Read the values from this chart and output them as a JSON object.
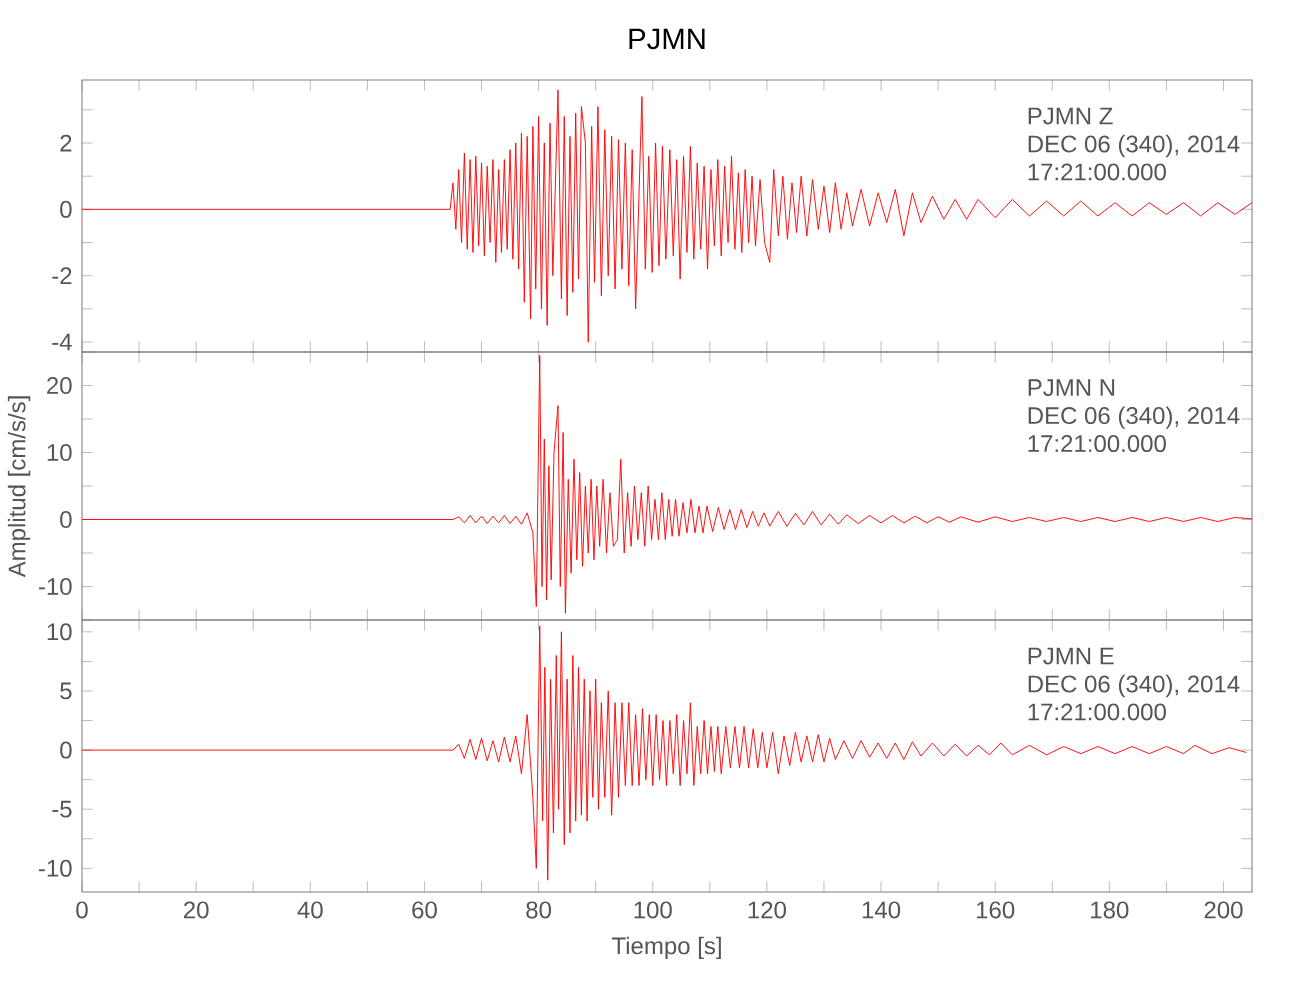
{
  "chart_data": [
    {
      "type": "line",
      "title": "PJMN",
      "color": "#ff0000",
      "tick_labels": "y",
      "xlim": [
        0,
        205
      ],
      "ylim": [
        -4.3,
        3.9
      ],
      "xticks": [
        0,
        {
          "value": 10,
          "label": null
        },
        20,
        {
          "value": 30,
          "label": null
        },
        40,
        {
          "value": 50,
          "label": null
        },
        60,
        {
          "value": 70,
          "label": null
        },
        80,
        {
          "value": 90,
          "label": null
        },
        100,
        {
          "value": 110,
          "label": null
        },
        120,
        {
          "value": 130,
          "label": null
        },
        140,
        {
          "value": 150,
          "label": null
        },
        160,
        {
          "value": 170,
          "label": null
        },
        180,
        {
          "value": 190,
          "label": null
        },
        200
      ],
      "yticks": [
        -4,
        {
          "value": -3,
          "label": null
        },
        -2,
        {
          "value": -1,
          "label": null
        },
        0,
        {
          "value": 1,
          "label": null
        },
        2,
        {
          "value": 3,
          "label": null
        }
      ],
      "annotations": [
        "PJMN   Z",
        "DEC 06 (340), 2014",
        "17:21:00.000"
      ],
      "x": [
        0,
        20,
        40,
        60,
        64.5,
        65,
        65.5,
        66,
        66.5,
        67,
        67.5,
        68,
        68.5,
        69,
        69.5,
        70,
        70.5,
        71,
        71.5,
        72,
        72.5,
        73,
        73.5,
        74,
        74.5,
        75,
        75.5,
        76,
        76.5,
        77,
        77.5,
        78,
        78.6,
        79,
        79.5,
        80,
        80.5,
        81,
        81.5,
        82,
        82.5,
        83.4,
        84,
        84.5,
        85,
        85.5,
        86,
        86.5,
        87,
        87.5,
        88.2,
        88.7,
        89.3,
        89.8,
        90.4,
        91,
        91.6,
        92.2,
        92.8,
        93.4,
        94,
        94.6,
        95.2,
        95.8,
        96.4,
        97,
        98.1,
        98.7,
        99.3,
        99.9,
        100.5,
        101.1,
        101.7,
        102.3,
        103,
        103.6,
        104.2,
        104.8,
        105.4,
        106,
        106.6,
        107.2,
        107.8,
        108.4,
        109,
        109.6,
        110.2,
        110.8,
        111.4,
        112,
        112.6,
        113.2,
        113.8,
        114.4,
        115,
        115.6,
        116.2,
        116.8,
        117.4,
        118,
        118.8,
        119.6,
        120.5,
        121.2,
        122,
        122.8,
        123.6,
        124.4,
        125.2,
        126,
        127,
        128,
        129,
        130,
        131,
        132,
        133,
        134,
        135,
        136.5,
        138,
        139.5,
        141,
        142.5,
        144,
        145.5,
        147,
        149,
        151,
        153,
        155,
        157,
        160,
        163,
        166,
        169,
        172,
        175,
        178,
        181,
        184,
        187,
        190,
        193,
        196,
        199,
        202,
        205
      ],
      "values": [
        0,
        0,
        0,
        0,
        0,
        0.8,
        -0.6,
        1.2,
        -1.0,
        1.7,
        -1.2,
        1.5,
        -1.3,
        1.6,
        -1.1,
        1.4,
        -1.4,
        1.3,
        -1.0,
        1.5,
        -1.6,
        1.2,
        -1.3,
        1.5,
        -1.2,
        1.8,
        -1.5,
        2.0,
        -1.8,
        2.3,
        -2.8,
        2.2,
        -3.3,
        2.5,
        -2.4,
        2.8,
        -3.0,
        2.0,
        -3.5,
        2.6,
        -2.0,
        3.6,
        -2.7,
        2.8,
        -3.2,
        2.2,
        -2.5,
        2.9,
        -2.1,
        3.1,
        2.0,
        -4.0,
        2.5,
        -2.2,
        3.1,
        -2.6,
        2.4,
        -2.0,
        2.2,
        -2.4,
        2.1,
        -1.8,
        2.0,
        -2.3,
        1.8,
        -3.0,
        3.4,
        -1.8,
        1.6,
        -1.9,
        2.0,
        -1.7,
        1.9,
        -1.5,
        1.8,
        -1.4,
        1.5,
        -2.1,
        1.6,
        -1.3,
        1.9,
        -1.5,
        1.4,
        -1.2,
        1.3,
        -1.8,
        1.2,
        -1.1,
        1.5,
        -1.4,
        1.3,
        -1.0,
        1.6,
        -1.2,
        1.1,
        -1.3,
        1.2,
        -1.0,
        1.0,
        -1.1,
        0.9,
        -1.0,
        -1.6,
        1.2,
        -0.8,
        1.0,
        -0.9,
        0.8,
        -0.7,
        1.0,
        -0.8,
        0.9,
        -0.6,
        0.7,
        -0.7,
        0.8,
        -0.6,
        0.5,
        -0.5,
        0.6,
        -0.5,
        0.5,
        -0.4,
        0.6,
        -0.8,
        0.5,
        -0.4,
        0.4,
        -0.3,
        0.3,
        -0.3,
        0.3,
        -0.25,
        0.3,
        -0.2,
        0.25,
        -0.2,
        0.25,
        -0.2,
        0.2,
        -0.2,
        0.2,
        -0.15,
        0.2,
        -0.2,
        0.2,
        -0.15,
        0.2
      ]
    },
    {
      "type": "line",
      "ylabel": "Amplitud [cm/s/s]",
      "color": "#ff0000",
      "tick_labels": "y",
      "xlim": [
        0,
        205
      ],
      "ylim": [
        -15,
        25
      ],
      "xticks": [
        0,
        {
          "value": 10,
          "label": null
        },
        20,
        {
          "value": 30,
          "label": null
        },
        40,
        {
          "value": 50,
          "label": null
        },
        60,
        {
          "value": 70,
          "label": null
        },
        80,
        {
          "value": 90,
          "label": null
        },
        100,
        {
          "value": 110,
          "label": null
        },
        120,
        {
          "value": 130,
          "label": null
        },
        140,
        {
          "value": 150,
          "label": null
        },
        160,
        {
          "value": 170,
          "label": null
        },
        180,
        {
          "value": 190,
          "label": null
        },
        200
      ],
      "yticks": [
        {
          "value": -15,
          "label": null
        },
        -10,
        {
          "value": -5,
          "label": null
        },
        0,
        {
          "value": 5,
          "label": null
        },
        10,
        {
          "value": 15,
          "label": null
        },
        20,
        {
          "value": 25,
          "label": null
        }
      ],
      "annotations": [
        "PJMN   N",
        "DEC 06 (340), 2014",
        "17:21:00.000"
      ],
      "x": [
        0,
        30,
        60,
        65,
        66,
        67,
        68,
        69,
        70,
        71,
        72,
        73,
        74,
        75,
        76,
        77,
        78,
        79,
        79.6,
        80.2,
        80.6,
        81,
        81.4,
        81.8,
        82.2,
        82.7,
        83.4,
        83.8,
        84.3,
        84.7,
        85.2,
        85.7,
        86.2,
        86.7,
        87.2,
        87.7,
        88.2,
        88.7,
        89.2,
        89.7,
        90.2,
        90.7,
        91.3,
        91.9,
        92.5,
        93.1,
        93.8,
        94.4,
        95,
        95.6,
        96.2,
        96.8,
        97.4,
        98,
        98.6,
        99.2,
        99.8,
        100.4,
        101,
        101.6,
        102.2,
        102.8,
        103.4,
        104,
        104.6,
        105.3,
        106,
        106.7,
        107.4,
        108.1,
        108.8,
        109.5,
        110.5,
        111.5,
        112.5,
        113.5,
        114.5,
        115.5,
        116.5,
        117.5,
        118.5,
        119.5,
        120.5,
        122,
        123.5,
        125,
        126.5,
        128,
        129.5,
        131,
        132.5,
        134,
        136,
        138,
        140,
        142,
        144,
        146,
        148,
        150,
        152,
        154,
        157,
        160,
        163,
        166,
        169,
        172,
        175,
        178,
        181,
        184,
        187,
        190,
        193,
        196,
        199,
        202,
        205
      ],
      "values": [
        0,
        0,
        0,
        0,
        0.4,
        -0.5,
        0.6,
        -0.5,
        0.5,
        -0.6,
        0.5,
        -0.5,
        0.6,
        -0.6,
        0.5,
        -0.7,
        1.0,
        -2.0,
        -13,
        24.5,
        -10,
        12,
        -12,
        8,
        -9,
        10,
        17,
        -10,
        13,
        -14,
        6,
        -8,
        9,
        -6,
        7,
        -7,
        5,
        -5,
        6,
        -6,
        5,
        -4,
        6,
        -5,
        4,
        -4,
        -3,
        9,
        -5,
        4,
        -4,
        5,
        -3,
        4,
        -4,
        5,
        -3,
        3,
        -3,
        4,
        -3,
        3,
        -2.5,
        3,
        -2.5,
        2.5,
        -2,
        3,
        -2,
        2,
        -2,
        2,
        -1.8,
        1.8,
        -1.5,
        1.5,
        -1.5,
        1.5,
        -1.2,
        1.2,
        -1,
        1,
        -1,
        1.2,
        -1,
        0.9,
        -0.8,
        1.2,
        -0.8,
        0.8,
        -0.7,
        0.7,
        -0.6,
        0.6,
        -0.5,
        0.6,
        -0.5,
        0.5,
        -0.5,
        0.4,
        -0.4,
        0.4,
        -0.4,
        0.4,
        -0.3,
        0.3,
        -0.3,
        0.3,
        -0.3,
        0.3,
        -0.3,
        0.3,
        -0.3,
        0.3,
        -0.3,
        0.3,
        -0.3,
        0.3,
        0.1
      ]
    },
    {
      "type": "line",
      "xlabel": "Tiempo [s]",
      "color": "#ff0000",
      "xlim": [
        0,
        205
      ],
      "ylim": [
        -12,
        11
      ],
      "xticks": [
        0,
        {
          "value": 10,
          "label": null
        },
        20,
        {
          "value": 30,
          "label": null
        },
        40,
        {
          "value": 50,
          "label": null
        },
        60,
        {
          "value": 70,
          "label": null
        },
        80,
        {
          "value": 90,
          "label": null
        },
        100,
        {
          "value": 110,
          "label": null
        },
        120,
        {
          "value": 130,
          "label": null
        },
        140,
        {
          "value": 150,
          "label": null
        },
        160,
        {
          "value": 170,
          "label": null
        },
        180,
        {
          "value": 190,
          "label": null
        },
        200
      ],
      "yticks": [
        -10,
        {
          "value": -7.5,
          "label": null
        },
        -5,
        {
          "value": -2.5,
          "label": null
        },
        0,
        {
          "value": 2.5,
          "label": null
        },
        5,
        {
          "value": 7.5,
          "label": null
        },
        10
      ],
      "annotations": [
        "PJMN   E",
        "DEC 06 (340), 2014",
        "17:21:00.000"
      ],
      "x": [
        0,
        30,
        60,
        65,
        66,
        67,
        68,
        69,
        70,
        71,
        72,
        73,
        74,
        75,
        76,
        77,
        78,
        79,
        79.6,
        80.2,
        80.7,
        81.1,
        81.6,
        82.1,
        82.6,
        83.1,
        83.5,
        84,
        84.5,
        85,
        85.5,
        86,
        86.5,
        87,
        87.5,
        88,
        88.5,
        89,
        89.5,
        90,
        90.5,
        91,
        91.6,
        92.2,
        92.8,
        93.4,
        94,
        94.6,
        95.2,
        95.8,
        96.4,
        97,
        97.6,
        98.2,
        98.8,
        99.4,
        100,
        100.6,
        101.2,
        101.8,
        102.4,
        103,
        103.6,
        104.2,
        104.8,
        105.4,
        106,
        106.6,
        107.2,
        107.8,
        108.4,
        109,
        109.6,
        110.2,
        110.8,
        111.4,
        112,
        112.8,
        113.6,
        114.4,
        115.2,
        116,
        116.8,
        117.6,
        118.4,
        119.2,
        120,
        121,
        122,
        123,
        124,
        125,
        126,
        127,
        128,
        129,
        130,
        131,
        132,
        133.5,
        135,
        136.5,
        138,
        139.5,
        141,
        142.5,
        144,
        145.5,
        147,
        149,
        151,
        153,
        155,
        157,
        159,
        161,
        163,
        166,
        169,
        172,
        175,
        178,
        181,
        184,
        187,
        190,
        193,
        195,
        198,
        201,
        204
      ],
      "values": [
        0,
        0,
        0,
        0,
        0.5,
        -0.7,
        0.9,
        -0.8,
        1.0,
        -0.9,
        0.8,
        -1.0,
        1.1,
        -1.0,
        1.2,
        -2.0,
        3,
        -4,
        -10,
        10.5,
        -6,
        7,
        -11,
        6,
        -7,
        8,
        -5,
        10,
        -8,
        6,
        -7,
        8,
        -6,
        7,
        -5.5,
        6,
        -6,
        5,
        -4,
        6,
        -5,
        4,
        -4,
        5,
        -5.5,
        4,
        -4,
        4,
        -3,
        4,
        -3,
        3,
        -3,
        3.5,
        -2.5,
        3,
        -3,
        3,
        -2.5,
        2.5,
        -3,
        2.5,
        -2,
        3,
        -3,
        2.5,
        -2,
        4,
        -3,
        2,
        -2,
        2.5,
        -2,
        2,
        -1.8,
        2,
        -2,
        2,
        -1.5,
        2,
        -1.5,
        2,
        -1.5,
        1.8,
        -1.5,
        1.5,
        -1.5,
        1.5,
        -2,
        1.2,
        -1.3,
        1.5,
        -1,
        1.2,
        -1,
        1.3,
        -1,
        1,
        -0.8,
        0.8,
        -0.7,
        0.8,
        -0.6,
        0.6,
        -0.7,
        0.6,
        -0.8,
        0.7,
        -0.5,
        0.6,
        -0.5,
        0.5,
        -0.5,
        0.4,
        -0.4,
        0.6,
        -0.4,
        0.4,
        -0.4,
        0.3,
        -0.3,
        0.3,
        -0.3,
        0.3,
        -0.3,
        0.3,
        -0.3,
        0.4,
        -0.3,
        0.2,
        -0.2
      ]
    }
  ]
}
